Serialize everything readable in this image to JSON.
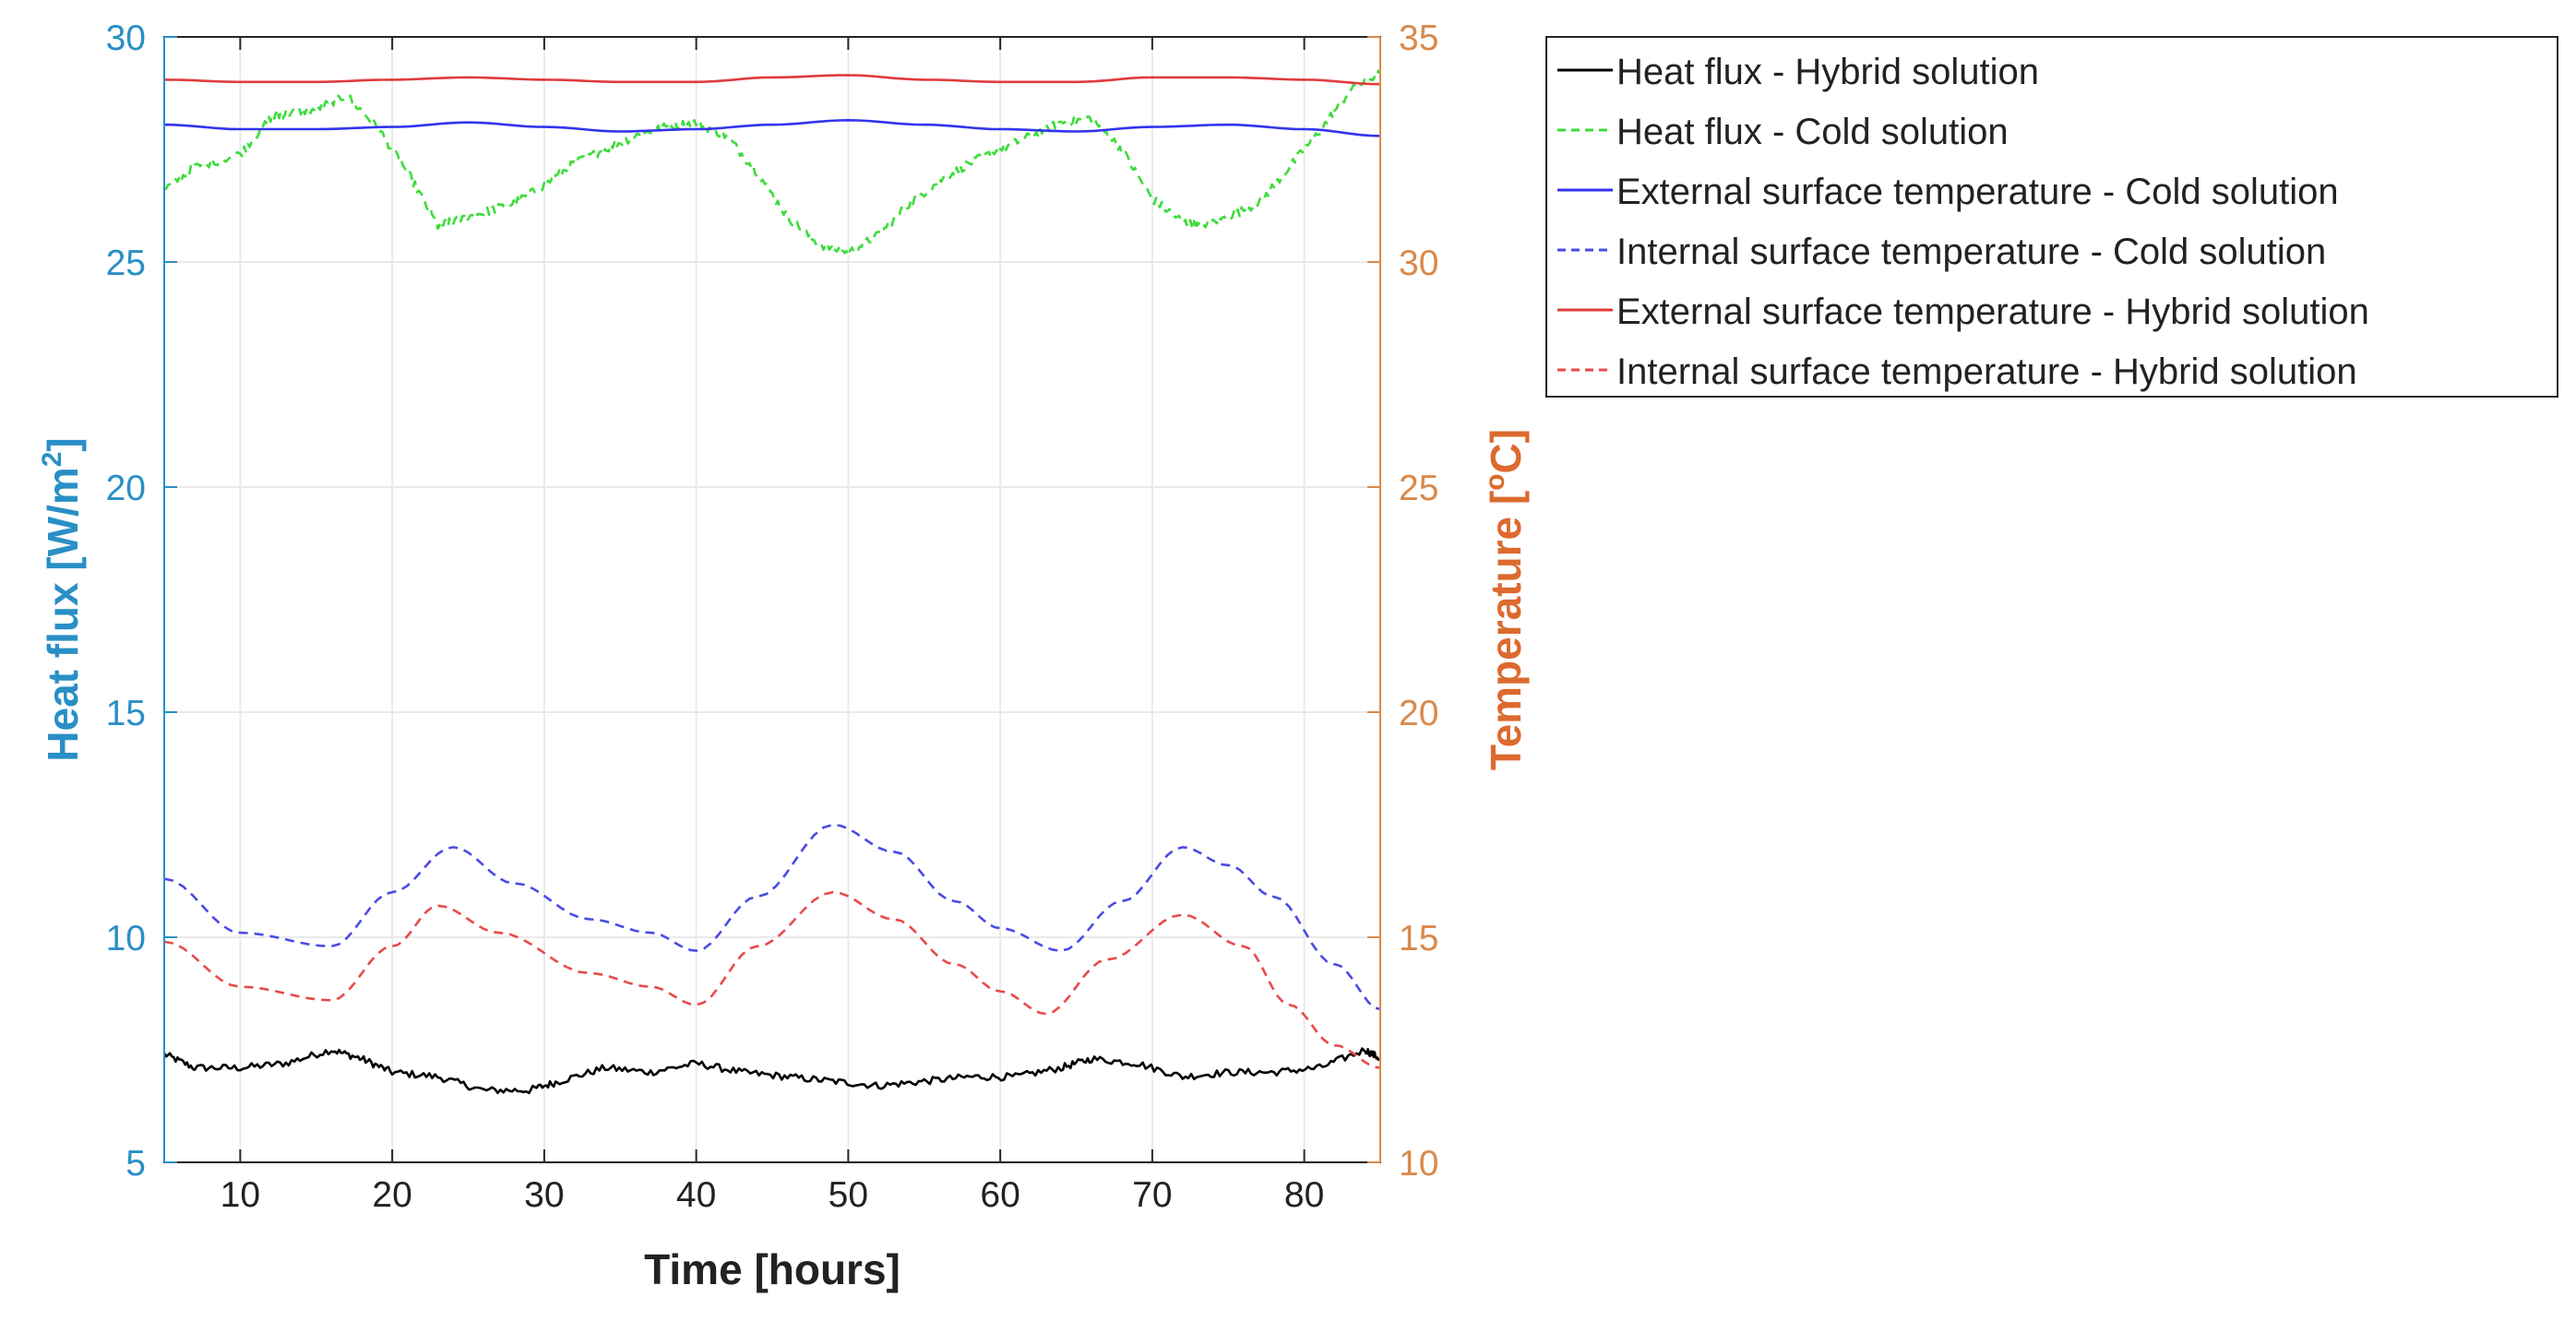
{
  "chart_data": {
    "type": "line",
    "title": "",
    "xlabel": "Time [hours]",
    "ylabel_left": {
      "pre": "Heat flux [W/m",
      "sup": "2",
      "post": "]"
    },
    "ylabel_right": {
      "pre": "Temperature [",
      "sup": "o",
      "post": "C]"
    },
    "xlim": [
      5,
      85
    ],
    "ylim_left": [
      5,
      30
    ],
    "ylim_right": [
      10,
      35
    ],
    "xticks": [
      10,
      20,
      30,
      40,
      50,
      60,
      70,
      80
    ],
    "yticks_left": [
      5,
      10,
      15,
      20,
      25,
      30
    ],
    "yticks_right": [
      10,
      15,
      20,
      25,
      30,
      35
    ],
    "grid": true,
    "legend_position": "outside-top-right",
    "colors": {
      "left_axis": "#2a8fc6",
      "right_axis": "#d98a4c",
      "right_label": "#dc6a2e"
    },
    "series": [
      {
        "name": "Heat flux - Hybrid solution",
        "axis": "left",
        "color": "#000000",
        "style": "solid",
        "noise": 0.08,
        "x": [
          5,
          7,
          10,
          13,
          16,
          18,
          20,
          23,
          26,
          29,
          31,
          34,
          37,
          40,
          43,
          46,
          49,
          52,
          55,
          58,
          61,
          64,
          66,
          69,
          72,
          75,
          78,
          81,
          84,
          85
        ],
        "values": [
          7.4,
          7.1,
          7.1,
          7.2,
          7.5,
          7.3,
          7.0,
          6.9,
          6.6,
          6.6,
          6.8,
          7.1,
          7.0,
          7.2,
          7.0,
          6.9,
          6.8,
          6.7,
          6.8,
          6.9,
          6.9,
          7.1,
          7.3,
          7.2,
          6.9,
          7.0,
          7.0,
          7.1,
          7.5,
          7.3
        ]
      },
      {
        "name": "Heat flux - Cold solution",
        "axis": "left",
        "color": "#3ddc3a",
        "style": "dashed",
        "noise": 0.1,
        "x": [
          5,
          7,
          10,
          12,
          13,
          15,
          17,
          19,
          21,
          23,
          24,
          26,
          28,
          30,
          32,
          34,
          36,
          38,
          40,
          42,
          44,
          46,
          48,
          50,
          52,
          54,
          56,
          58,
          60,
          62,
          64,
          66,
          68,
          70,
          72,
          73,
          75,
          77,
          79,
          81,
          83,
          85
        ],
        "values": [
          26.6,
          27.1,
          27.4,
          28.2,
          28.3,
          28.4,
          28.7,
          28.0,
          27.0,
          25.8,
          25.9,
          26.1,
          26.3,
          26.7,
          27.2,
          27.5,
          27.8,
          28.0,
          28.1,
          27.8,
          27.0,
          26.0,
          25.4,
          25.2,
          25.6,
          26.3,
          26.8,
          27.2,
          27.5,
          27.8,
          28.1,
          28.2,
          27.5,
          26.4,
          25.9,
          25.8,
          26.0,
          26.3,
          27.1,
          27.9,
          28.8,
          29.2
        ]
      },
      {
        "name": "External surface temperature - Cold solution",
        "axis": "right",
        "color": "#3333ee",
        "style": "solid",
        "noise": 0,
        "x": [
          5,
          10,
          15,
          20,
          25,
          30,
          35,
          40,
          45,
          50,
          55,
          60,
          65,
          70,
          75,
          80,
          85
        ],
        "values": [
          33.05,
          32.95,
          32.95,
          33.0,
          33.1,
          33.0,
          32.9,
          32.95,
          33.05,
          33.15,
          33.05,
          32.95,
          32.9,
          33.0,
          33.05,
          32.95,
          32.8
        ]
      },
      {
        "name": "Internal surface temperature - Cold solution",
        "axis": "right",
        "color": "#4a4ae6",
        "style": "dashed",
        "noise": 0,
        "x": [
          5,
          10,
          16,
          20,
          24,
          28,
          33,
          37,
          40,
          44,
          49,
          53,
          57,
          60,
          64,
          68,
          72,
          75,
          78,
          82,
          85
        ],
        "values": [
          16.3,
          15.1,
          14.8,
          16.0,
          17.0,
          16.2,
          15.4,
          15.1,
          14.7,
          15.9,
          17.5,
          16.9,
          15.8,
          15.2,
          14.7,
          15.8,
          17.0,
          16.6,
          15.9,
          14.4,
          13.4
        ]
      },
      {
        "name": "External surface temperature - Hybrid solution",
        "axis": "right",
        "color": "#e03b3b",
        "style": "solid",
        "noise": 0,
        "x": [
          5,
          10,
          15,
          20,
          25,
          30,
          35,
          40,
          45,
          50,
          55,
          60,
          65,
          70,
          75,
          80,
          85
        ],
        "values": [
          34.05,
          34.0,
          34.0,
          34.05,
          34.1,
          34.05,
          34.0,
          34.0,
          34.1,
          34.15,
          34.05,
          34.0,
          34.0,
          34.1,
          34.1,
          34.05,
          33.95
        ]
      },
      {
        "name": "Internal surface temperature - Hybrid solution",
        "axis": "right",
        "color": "#e84a4a",
        "style": "dashed",
        "noise": 0,
        "x": [
          5,
          10,
          16,
          20,
          23,
          27,
          33,
          37,
          40,
          44,
          49,
          53,
          57,
          60,
          63,
          67,
          72,
          76,
          79,
          82,
          85
        ],
        "values": [
          14.9,
          13.9,
          13.6,
          14.8,
          15.7,
          15.1,
          14.2,
          13.9,
          13.5,
          14.8,
          16.0,
          15.4,
          14.4,
          13.8,
          13.3,
          14.5,
          15.5,
          14.8,
          13.5,
          12.6,
          12.1
        ]
      }
    ]
  }
}
